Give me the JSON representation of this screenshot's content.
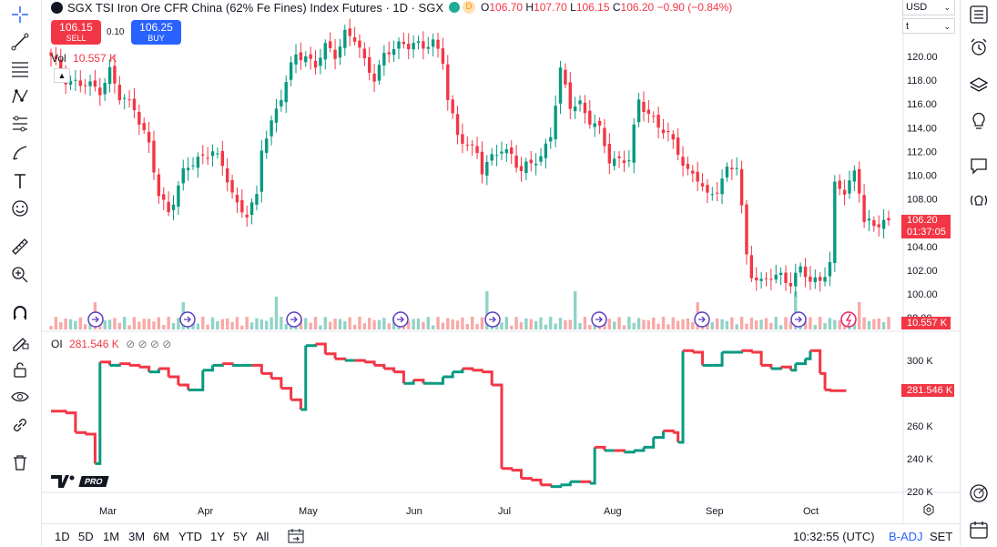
{
  "header": {
    "symbol_title": "SGX TSI Iron Ore CFR China (62% Fe Fines) Index Futures · 1D · SGX",
    "market_badge": "D",
    "open_label": "O",
    "open": "106.70",
    "high_label": "H",
    "high": "107.70",
    "low_label": "L",
    "low": "106.15",
    "close_label": "C",
    "close": "106.20",
    "change": "−0.90 (−0.84%)",
    "colors": {
      "up": "#089981",
      "down": "#f23645",
      "badge_green": "#22ab94",
      "badge_orange": "#ff9800"
    }
  },
  "trade": {
    "sell_price": "106.15",
    "sell_label": "SELL",
    "spread": "0.10",
    "buy_price": "106.25",
    "buy_label": "BUY",
    "sell_color": "#f23645",
    "buy_color": "#2962ff"
  },
  "currency_select": "USD",
  "unit_select": "t",
  "volume": {
    "label": "Vol",
    "value": "10.557 K"
  },
  "oi": {
    "label": "OI",
    "value": "281.546 K",
    "dots": "⊘ ⊘ ⊘ ⊘"
  },
  "price_tags": {
    "last_price": "106.20",
    "countdown": "01:37:05",
    "volume_tag": "10.557 K",
    "oi_tag": "281.546 K"
  },
  "logo_text": "PRO",
  "bottom_bar": {
    "ranges": [
      "1D",
      "5D",
      "1M",
      "3M",
      "6M",
      "YTD",
      "1Y",
      "5Y",
      "All"
    ],
    "time": "10:32:55 (UTC)",
    "adj": "B-ADJ",
    "session": "SET"
  },
  "left_tools": [
    "crosshair-icon",
    "trend-line-icon",
    "fib-retracement-icon",
    "pattern-icon",
    "forecast-icon",
    "brush-icon",
    "text-icon",
    "emoji-icon",
    "ruler-icon",
    "zoom-in-icon",
    "magnet-icon",
    "lock-drawing-icon",
    "unlock-icon",
    "eye-icon",
    "link-icon",
    "trash-icon"
  ],
  "right_tools": [
    "watchlist-icon",
    "alarm-clock-icon",
    "layers-icon",
    "lightbulb-icon",
    "chat-icon",
    "signal-icon",
    "target-icon",
    "calendar-icon"
  ],
  "chart_data": [
    {
      "type": "candlestick",
      "title": "SGX TSI Iron Ore CFR China (62% Fe Fines) Index Futures · 1D · SGX",
      "x_labels": [
        "Mar",
        "Apr",
        "May",
        "Jun",
        "Jul",
        "Aug",
        "Sep",
        "Oct"
      ],
      "y_ticks": [
        "120.00",
        "118.00",
        "116.00",
        "114.00",
        "112.00",
        "110.00",
        "108.00",
        "106.00",
        "104.00",
        "102.00",
        "100.00",
        "98.00"
      ],
      "ylim": [
        98.0,
        123.0
      ],
      "anchors": [
        [
          0,
          119.8
        ],
        [
          3,
          118.2
        ],
        [
          6,
          117.6
        ],
        [
          10,
          117.3
        ],
        [
          12,
          118.8
        ],
        [
          14,
          116.4
        ],
        [
          17,
          115.9
        ],
        [
          20,
          112.4
        ],
        [
          22,
          108.2
        ],
        [
          24,
          107.1
        ],
        [
          27,
          110.1
        ],
        [
          30,
          111.4
        ],
        [
          33,
          112.2
        ],
        [
          36,
          109.6
        ],
        [
          38,
          107.6
        ],
        [
          40,
          106.8
        ],
        [
          42,
          107.9
        ],
        [
          43,
          112.2
        ],
        [
          46,
          115.7
        ],
        [
          48,
          117.7
        ],
        [
          50,
          120.1
        ],
        [
          52,
          120.1
        ],
        [
          54,
          119.3
        ],
        [
          56,
          120.6
        ],
        [
          58,
          120.2
        ],
        [
          60,
          122.1
        ],
        [
          62,
          121.4
        ],
        [
          64,
          119.4
        ],
        [
          66,
          118.4
        ],
        [
          68,
          120.1
        ],
        [
          70,
          120.5
        ],
        [
          72,
          121.1
        ],
        [
          74,
          121.3
        ],
        [
          76,
          120.6
        ],
        [
          78,
          121.1
        ],
        [
          80,
          119.9
        ],
        [
          81,
          116.7
        ],
        [
          83,
          113.1
        ],
        [
          85,
          112.4
        ],
        [
          87,
          112.2
        ],
        [
          88,
          110.6
        ],
        [
          90,
          111.3
        ],
        [
          92,
          112.1
        ],
        [
          94,
          111.9
        ],
        [
          96,
          110.4
        ],
        [
          98,
          110.8
        ],
        [
          100,
          111.6
        ],
        [
          102,
          113.6
        ],
        [
          104,
          118.6
        ],
        [
          106,
          115.8
        ],
        [
          108,
          116.2
        ],
        [
          110,
          114.6
        ],
        [
          112,
          113.6
        ],
        [
          114,
          111.4
        ],
        [
          116,
          111.4
        ],
        [
          118,
          111.2
        ],
        [
          120,
          116.2
        ],
        [
          122,
          115.4
        ],
        [
          124,
          114.1
        ],
        [
          126,
          113.2
        ],
        [
          128,
          112.1
        ],
        [
          130,
          110.4
        ],
        [
          132,
          109.6
        ],
        [
          134,
          108.1
        ],
        [
          136,
          109.1
        ],
        [
          138,
          110.4
        ],
        [
          140,
          110.6
        ],
        [
          141,
          107.1
        ],
        [
          142,
          103.3
        ],
        [
          143,
          101.9
        ],
        [
          145,
          100.9
        ],
        [
          147,
          101.3
        ],
        [
          149,
          101.6
        ],
        [
          151,
          101.1
        ],
        [
          153,
          101.9
        ],
        [
          155,
          101.1
        ],
        [
          157,
          101.3
        ],
        [
          159,
          102.6
        ],
        [
          160,
          108.9
        ],
        [
          162,
          108.6
        ],
        [
          164,
          110.4
        ],
        [
          165,
          108.9
        ],
        [
          166,
          106.2
        ],
        [
          168,
          105.4
        ],
        [
          170,
          106.4
        ],
        [
          171,
          106.2
        ]
      ],
      "volume_note": "volume histogram in lower part of price pane; last value 10.557 K"
    },
    {
      "type": "step-line",
      "title": "OI",
      "y_ticks": [
        "300 K",
        "280 K",
        "260 K",
        "240 K",
        "220 K"
      ],
      "ylim": [
        216,
        312
      ],
      "values_k": [
        [
          0,
          269
        ],
        [
          3,
          268
        ],
        [
          5,
          256
        ],
        [
          7,
          255
        ],
        [
          9,
          237
        ],
        [
          10,
          299
        ],
        [
          12,
          297
        ],
        [
          14,
          298
        ],
        [
          16,
          297
        ],
        [
          18,
          296
        ],
        [
          20,
          293
        ],
        [
          22,
          295
        ],
        [
          24,
          290
        ],
        [
          26,
          285
        ],
        [
          28,
          282
        ],
        [
          30,
          282
        ],
        [
          31,
          294
        ],
        [
          33,
          297
        ],
        [
          35,
          298
        ],
        [
          37,
          297
        ],
        [
          39,
          297
        ],
        [
          41,
          297
        ],
        [
          43,
          292
        ],
        [
          45,
          289
        ],
        [
          47,
          283
        ],
        [
          49,
          276
        ],
        [
          51,
          270
        ],
        [
          52,
          309
        ],
        [
          54,
          310
        ],
        [
          56,
          304
        ],
        [
          58,
          301
        ],
        [
          60,
          300
        ],
        [
          62,
          300
        ],
        [
          64,
          299
        ],
        [
          66,
          297
        ],
        [
          68,
          295
        ],
        [
          70,
          293
        ],
        [
          72,
          286
        ],
        [
          74,
          288
        ],
        [
          76,
          286
        ],
        [
          78,
          286
        ],
        [
          80,
          290
        ],
        [
          82,
          293
        ],
        [
          84,
          295
        ],
        [
          86,
          294
        ],
        [
          88,
          293
        ],
        [
          90,
          285
        ],
        [
          92,
          234
        ],
        [
          94,
          233
        ],
        [
          96,
          228
        ],
        [
          98,
          227
        ],
        [
          100,
          224
        ],
        [
          102,
          223
        ],
        [
          104,
          224
        ],
        [
          106,
          226
        ],
        [
          108,
          226
        ],
        [
          110,
          225
        ],
        [
          111,
          247
        ],
        [
          113,
          245
        ],
        [
          115,
          245
        ],
        [
          117,
          244
        ],
        [
          119,
          245
        ],
        [
          121,
          247
        ],
        [
          123,
          253
        ],
        [
          125,
          257
        ],
        [
          127,
          256
        ],
        [
          128,
          250
        ],
        [
          129,
          306
        ],
        [
          131,
          305
        ],
        [
          133,
          297
        ],
        [
          135,
          297
        ],
        [
          137,
          305
        ],
        [
          139,
          305
        ],
        [
          141,
          306
        ],
        [
          143,
          305
        ],
        [
          145,
          297
        ],
        [
          147,
          295
        ],
        [
          149,
          296
        ],
        [
          151,
          294
        ],
        [
          152,
          298
        ],
        [
          154,
          301
        ],
        [
          155,
          306
        ],
        [
          157,
          292
        ],
        [
          158,
          282
        ],
        [
          159,
          281.5
        ]
      ]
    }
  ]
}
